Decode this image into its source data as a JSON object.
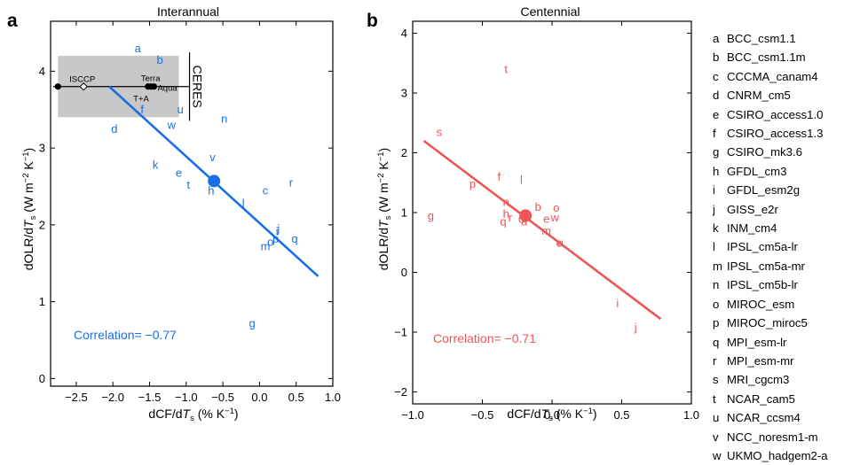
{
  "panels": [
    {
      "letter": "a",
      "title": "Interannual",
      "xlabel": "dCF/dT_s (% K^-1)",
      "ylabel": "dOLR/dT_s (W m^-2 K^-1)",
      "color": "#1a6ee6",
      "correlation_text": "Correlation= −0.77",
      "observations": {
        "box_label": "CERES",
        "box_color": "#c8c8c8",
        "points": [
          {
            "label": "ISCCP",
            "x": -2.4,
            "y": 3.8,
            "marker": "diamond"
          },
          {
            "label": "Terra",
            "x": -1.52,
            "y": 3.8,
            "marker": "dot"
          },
          {
            "label": "Aqua",
            "x": -1.44,
            "y": 3.8,
            "marker": "dot"
          },
          {
            "label": "T+A",
            "x": -1.48,
            "y": 3.8,
            "marker": "dot"
          },
          {
            "label": "",
            "x": -2.75,
            "y": 3.8,
            "marker": "dot"
          }
        ]
      }
    },
    {
      "letter": "b",
      "title": "Centennial",
      "xlabel": "dCF/dT_s (% K^-1)",
      "ylabel": "dOLR/dT_s (W m^-2 K^-1)",
      "color": "#ee5555",
      "correlation_text": "Correlation= −0.71"
    }
  ],
  "legend": [
    {
      "key": "a",
      "model": "BCC_csm1.1"
    },
    {
      "key": "b",
      "model": "BCC_csm1.1m"
    },
    {
      "key": "c",
      "model": "CCCMA_canam4"
    },
    {
      "key": "d",
      "model": "CNRM_cm5"
    },
    {
      "key": "e",
      "model": "CSIRO_access1.0"
    },
    {
      "key": "f",
      "model": "CSIRO_access1.3"
    },
    {
      "key": "g",
      "model": "CSIRO_mk3.6"
    },
    {
      "key": "h",
      "model": "GFDL_cm3"
    },
    {
      "key": "i",
      "model": "GFDL_esm2g"
    },
    {
      "key": "j",
      "model": "GISS_e2r"
    },
    {
      "key": "k",
      "model": "INM_cm4"
    },
    {
      "key": "l",
      "model": "IPSL_cm5a-lr"
    },
    {
      "key": "m",
      "model": "IPSL_cm5a-mr"
    },
    {
      "key": "n",
      "model": "IPSL_cm5b-lr"
    },
    {
      "key": "o",
      "model": "MIROC_esm"
    },
    {
      "key": "p",
      "model": "MIROC_miroc5"
    },
    {
      "key": "q",
      "model": "MPI_esm-lr"
    },
    {
      "key": "r",
      "model": "MPI_esm-mr"
    },
    {
      "key": "s",
      "model": "MRI_cgcm3"
    },
    {
      "key": "t",
      "model": "NCAR_cam5"
    },
    {
      "key": "u",
      "model": "NCAR_ccsm4"
    },
    {
      "key": "v",
      "model": "NCC_noresm1-m"
    },
    {
      "key": "w",
      "model": "UKMO_hadgem2-a"
    }
  ],
  "chart_data": [
    {
      "type": "scatter",
      "title": "Interannual",
      "xlabel": "dCF/dT_s (% K^-1)",
      "ylabel": "dOLR/dT_s (W m^-2 K^-1)",
      "xlim": [
        -2.85,
        1.0
      ],
      "ylim": [
        -0.1,
        4.65
      ],
      "xticks": [
        -2.5,
        -2.0,
        -1.5,
        -1.0,
        -0.5,
        0.0,
        0.5,
        1.0
      ],
      "xticklabels": [
        "−2.5",
        "−2.0",
        "−1.5",
        "−1.0",
        "−0.5",
        "0.0",
        "0.5",
        "1.0"
      ],
      "yticks": [
        0,
        1,
        2,
        3,
        4
      ],
      "grid": false,
      "points": [
        {
          "label": "a",
          "x": -1.66,
          "y": 4.3
        },
        {
          "label": "b",
          "x": -1.36,
          "y": 4.15
        },
        {
          "label": "c",
          "x": 0.08,
          "y": 2.45
        },
        {
          "label": "d",
          "x": -1.98,
          "y": 3.25
        },
        {
          "label": "e",
          "x": -1.1,
          "y": 2.68
        },
        {
          "label": "f",
          "x": -1.6,
          "y": 3.5
        },
        {
          "label": "g",
          "x": -0.1,
          "y": 0.72
        },
        {
          "label": "h",
          "x": -0.66,
          "y": 2.45
        },
        {
          "label": "i",
          "x": 0.24,
          "y": 1.92
        },
        {
          "label": "j",
          "x": 0.26,
          "y": 1.95
        },
        {
          "label": "k",
          "x": -1.42,
          "y": 2.78
        },
        {
          "label": "l",
          "x": -0.22,
          "y": 2.28
        },
        {
          "label": "m",
          "x": 0.08,
          "y": 1.72
        },
        {
          "label": "n",
          "x": -0.48,
          "y": 3.38
        },
        {
          "label": "o",
          "x": 0.15,
          "y": 1.78
        },
        {
          "label": "p",
          "x": 0.22,
          "y": 1.82
        },
        {
          "label": "q",
          "x": 0.48,
          "y": 1.82
        },
        {
          "label": "r",
          "x": 0.43,
          "y": 2.55
        },
        {
          "label": "t",
          "x": -0.97,
          "y": 2.52
        },
        {
          "label": "u",
          "x": -1.08,
          "y": 3.5
        },
        {
          "label": "v",
          "x": -0.64,
          "y": 2.88
        },
        {
          "label": "w",
          "x": -1.2,
          "y": 3.3
        }
      ],
      "mean": {
        "x": -0.62,
        "y": 2.57
      },
      "regression": {
        "x": [
          -2.05,
          0.8
        ],
        "y": [
          3.8,
          1.33
        ]
      },
      "correlation": -0.77,
      "obs_range": {
        "x": [
          -2.75,
          -1.1
        ],
        "y": [
          3.4,
          4.2
        ]
      }
    },
    {
      "type": "scatter",
      "title": "Centennial",
      "xlabel": "dCF/dT_s (% K^-1)",
      "ylabel": "dOLR/dT_s (W m^-2 K^-1)",
      "xlim": [
        -1.0,
        1.0
      ],
      "ylim": [
        -2.2,
        4.2
      ],
      "xticks": [
        -1.0,
        -0.5,
        0.0,
        0.5,
        1.0
      ],
      "xticklabels": [
        "−1.0",
        "−0.5",
        "0.0",
        "0.5",
        "1.0"
      ],
      "yticks": [
        -2,
        -1,
        0,
        1,
        2,
        3,
        4
      ],
      "yticklabels": [
        "−2",
        "−1",
        "0",
        "1",
        "2",
        "3",
        "4"
      ],
      "grid": false,
      "points": [
        {
          "label": "a",
          "x": -0.2,
          "y": 0.85
        },
        {
          "label": "b",
          "x": -0.1,
          "y": 1.1
        },
        {
          "label": "c",
          "x": 0.05,
          "y": 0.5
        },
        {
          "label": "d",
          "x": -0.22,
          "y": 0.9
        },
        {
          "label": "e",
          "x": -0.04,
          "y": 0.9
        },
        {
          "label": "f",
          "x": -0.38,
          "y": 1.6
        },
        {
          "label": "g",
          "x": -0.87,
          "y": 0.95
        },
        {
          "label": "h",
          "x": -0.33,
          "y": 0.98
        },
        {
          "label": "i",
          "x": 0.47,
          "y": -0.52
        },
        {
          "label": "j",
          "x": 0.6,
          "y": -0.92
        },
        {
          "label": "l",
          "x": -0.22,
          "y": 1.55
        },
        {
          "label": "m",
          "x": -0.04,
          "y": 0.7
        },
        {
          "label": "n",
          "x": -0.33,
          "y": 1.18
        },
        {
          "label": "o",
          "x": 0.03,
          "y": 1.08
        },
        {
          "label": "p",
          "x": -0.57,
          "y": 1.48
        },
        {
          "label": "q",
          "x": -0.35,
          "y": 0.85
        },
        {
          "label": "r",
          "x": -0.3,
          "y": 0.92
        },
        {
          "label": "s",
          "x": -0.81,
          "y": 2.35
        },
        {
          "label": "t",
          "x": -0.33,
          "y": 3.4
        },
        {
          "label": "u",
          "x": 0.06,
          "y": 0.5
        },
        {
          "label": "w",
          "x": 0.02,
          "y": 0.92
        }
      ],
      "mean": {
        "x": -0.19,
        "y": 0.95
      },
      "regression": {
        "x": [
          -0.92,
          0.78
        ],
        "y": [
          2.2,
          -0.78
        ]
      },
      "correlation": -0.71
    }
  ]
}
